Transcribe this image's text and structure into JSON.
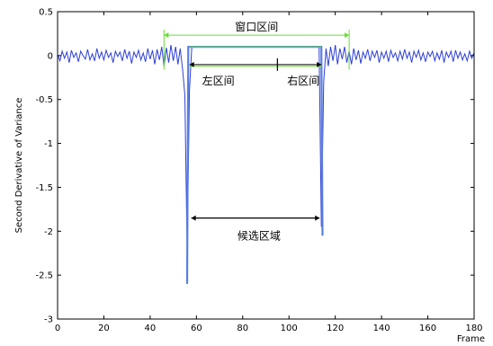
{
  "chart_data": {
    "type": "line",
    "xlabel": "Frame",
    "ylabel": "Second Derivative of Variance",
    "xlim": [
      0,
      180
    ],
    "ylim": [
      -3,
      0.5
    ],
    "grid": false,
    "xticks": [
      0,
      20,
      40,
      60,
      80,
      100,
      120,
      140,
      160,
      180
    ],
    "xtick_labels": [
      "0",
      "20",
      "40",
      "60",
      "80",
      "100",
      "120",
      "140",
      "160",
      "180"
    ],
    "yticks": [
      0.5,
      0,
      -0.5,
      -1,
      -1.5,
      -2,
      -2.5,
      -3
    ],
    "ytick_labels": [
      "0.5",
      "0",
      "-0.5",
      "-1",
      "-1.5",
      "-2",
      "-2.5",
      "-3"
    ],
    "colors": {
      "signal": "#2e3fd6",
      "window": "#5a7fe0",
      "bracket": "#66dd33",
      "annotation": "#000000"
    },
    "series": [
      {
        "color": "#2e3fd6",
        "x": [
          0,
          1,
          2,
          3,
          4,
          5,
          6,
          7,
          8,
          9,
          10,
          11,
          12,
          13,
          14,
          15,
          16,
          17,
          18,
          19,
          20,
          21,
          22,
          23,
          24,
          25,
          26,
          27,
          28,
          29,
          30,
          31,
          32,
          33,
          34,
          35,
          36,
          37,
          38,
          39,
          40,
          41,
          42,
          43,
          44,
          45,
          46,
          47,
          48,
          49,
          50,
          51,
          52,
          53,
          54,
          55,
          56,
          57,
          58,
          59,
          60,
          61,
          62,
          63,
          64,
          65,
          66,
          67,
          68,
          69,
          70,
          71,
          72,
          73,
          74,
          75,
          76,
          77,
          78,
          79,
          80,
          81,
          82,
          83,
          84,
          85,
          86,
          87,
          88,
          89,
          90,
          91,
          92,
          93,
          94,
          95,
          96,
          97,
          98,
          99,
          100,
          101,
          102,
          103,
          104,
          105,
          106,
          107,
          108,
          109,
          110,
          111,
          112,
          113,
          114,
          115,
          116,
          117,
          118,
          119,
          120,
          121,
          122,
          123,
          124,
          125,
          126,
          127,
          128,
          129,
          130,
          131,
          132,
          133,
          134,
          135,
          136,
          137,
          138,
          139,
          140,
          141,
          142,
          143,
          144,
          145,
          146,
          147,
          148,
          149,
          150,
          151,
          152,
          153,
          154,
          155,
          156,
          157,
          158,
          159,
          160,
          161,
          162,
          163,
          164,
          165,
          166,
          167,
          168,
          169,
          170,
          171,
          172,
          173,
          174,
          175,
          176,
          177,
          178,
          179,
          180
        ],
        "y": [
          0.02,
          -0.06,
          0.05,
          -0.03,
          0.04,
          -0.08,
          0.06,
          -0.02,
          0.03,
          -0.07,
          0.05,
          0.0,
          -0.04,
          0.07,
          -0.05,
          0.02,
          -0.06,
          0.08,
          -0.03,
          0.04,
          -0.05,
          0.06,
          -0.02,
          0.03,
          -0.08,
          0.05,
          -0.01,
          0.04,
          -0.06,
          0.07,
          -0.03,
          0.05,
          -0.09,
          0.04,
          -0.02,
          0.06,
          -0.05,
          0.03,
          -0.07,
          0.08,
          -0.04,
          0.06,
          -0.1,
          0.07,
          -0.05,
          0.1,
          -0.12,
          0.09,
          -0.08,
          0.12,
          -0.06,
          0.1,
          -0.1,
          0.08,
          -0.15,
          -0.45,
          -2.2,
          -0.4,
          0.1,
          0.1,
          0.1,
          0.1,
          0.1,
          0.1,
          0.1,
          0.1,
          0.1,
          0.1,
          0.1,
          0.1,
          0.1,
          0.1,
          0.1,
          0.1,
          0.1,
          0.1,
          0.1,
          0.1,
          0.1,
          0.1,
          0.1,
          0.1,
          0.1,
          0.1,
          0.1,
          0.1,
          0.1,
          0.1,
          0.1,
          0.1,
          0.1,
          0.1,
          0.1,
          0.1,
          0.1,
          0.1,
          0.1,
          0.1,
          0.1,
          0.1,
          0.1,
          0.1,
          0.1,
          0.1,
          0.1,
          0.1,
          0.1,
          0.1,
          0.1,
          0.1,
          0.1,
          0.1,
          0.1,
          0.1,
          -1.95,
          -0.3,
          0.08,
          -0.12,
          0.1,
          -0.06,
          0.12,
          -0.1,
          0.08,
          -0.04,
          0.1,
          -0.08,
          0.05,
          -0.1,
          0.08,
          -0.05,
          0.06,
          -0.09,
          0.04,
          -0.03,
          0.07,
          -0.06,
          0.05,
          -0.02,
          0.06,
          -0.08,
          0.04,
          -0.03,
          0.05,
          -0.07,
          0.06,
          -0.02,
          0.03,
          -0.06,
          0.05,
          -0.04,
          0.07,
          -0.03,
          0.04,
          -0.08,
          0.05,
          -0.02,
          0.06,
          -0.05,
          0.03,
          -0.07,
          0.04,
          -0.01,
          0.05,
          -0.06,
          0.03,
          -0.04,
          0.06,
          -0.08,
          0.04,
          -0.02,
          0.05,
          -0.07,
          0.06,
          -0.03,
          0.04,
          -0.05,
          0.02,
          -0.06,
          0.05,
          -0.03,
          0.04
        ]
      },
      {
        "color": "#5a7fe0",
        "x": [
          56,
          56.5,
          57.5,
          114,
          114.5
        ],
        "y": [
          -2.6,
          0.1,
          0.1,
          0.1,
          -2.05
        ]
      }
    ],
    "annotations": {
      "top_label": "窗口区间",
      "left_label": "左区间",
      "right_label": "右区间",
      "center_label": "候选区域",
      "outer_interval": [
        46,
        126
      ],
      "inner_interval": [
        57,
        114
      ],
      "window_top": 0.1,
      "window_bottom": -0.12,
      "divider_x": 95
    }
  }
}
